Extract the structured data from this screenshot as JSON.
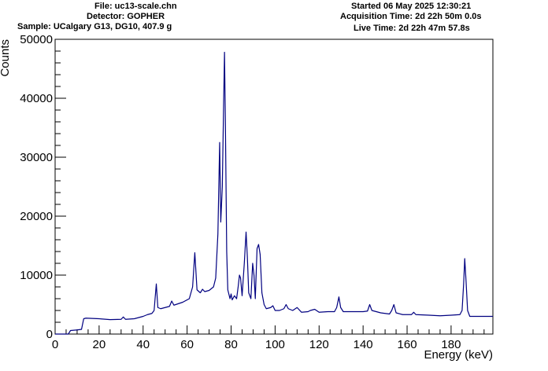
{
  "header": {
    "file": "File: uc13-scale.chn",
    "detector": "Detector: GOPHER",
    "sample": "Sample: UCalgary G13, DG10, 407.9 g",
    "started": "Started 06 May 2025 12:30:21",
    "acquisition": "Acquisition Time: 2d 22h 50m 0.0s",
    "live": "Live Time: 2d 22h 47m 57.8s"
  },
  "chart_data": {
    "type": "line",
    "title": "",
    "xlabel": "Energy (keV)",
    "ylabel": "Counts",
    "xlim": [
      0,
      199
    ],
    "ylim": [
      0,
      50000
    ],
    "x_ticks": [
      0,
      20,
      40,
      60,
      80,
      100,
      120,
      140,
      160,
      180
    ],
    "y_ticks": [
      0,
      10000,
      20000,
      30000,
      40000,
      50000
    ],
    "grid": false,
    "legend": "none",
    "color": "#000080",
    "points": [
      [
        0,
        0
      ],
      [
        6,
        0
      ],
      [
        7,
        600
      ],
      [
        10,
        700
      ],
      [
        12,
        800
      ],
      [
        13,
        2600
      ],
      [
        14,
        2700
      ],
      [
        20,
        2600
      ],
      [
        25,
        2450
      ],
      [
        30,
        2500
      ],
      [
        31,
        2900
      ],
      [
        32,
        2500
      ],
      [
        36,
        2600
      ],
      [
        38,
        2800
      ],
      [
        40,
        3000
      ],
      [
        42,
        3300
      ],
      [
        44,
        3500
      ],
      [
        45,
        4000
      ],
      [
        46,
        8500
      ],
      [
        46.7,
        4500
      ],
      [
        48,
        4300
      ],
      [
        50,
        4500
      ],
      [
        52,
        4700
      ],
      [
        53,
        5600
      ],
      [
        54,
        4900
      ],
      [
        58,
        5400
      ],
      [
        61,
        6000
      ],
      [
        62.5,
        8000
      ],
      [
        63.5,
        13800
      ],
      [
        64.5,
        7500
      ],
      [
        66,
        7000
      ],
      [
        67,
        7600
      ],
      [
        68,
        7200
      ],
      [
        70,
        7400
      ],
      [
        72,
        8000
      ],
      [
        73,
        9500
      ],
      [
        74,
        17000
      ],
      [
        74.8,
        32500
      ],
      [
        75.3,
        19000
      ],
      [
        76,
        25000
      ],
      [
        76.6,
        39000
      ],
      [
        77,
        47800
      ],
      [
        77.4,
        36000
      ],
      [
        78,
        14000
      ],
      [
        78.5,
        7500
      ],
      [
        79.5,
        6000
      ],
      [
        80,
        6800
      ],
      [
        80.5,
        5800
      ],
      [
        81.5,
        6500
      ],
      [
        82.5,
        6000
      ],
      [
        83.2,
        8000
      ],
      [
        83.8,
        10000
      ],
      [
        84.3,
        9500
      ],
      [
        85,
        6500
      ],
      [
        86,
        12000
      ],
      [
        86.8,
        17300
      ],
      [
        87.4,
        13000
      ],
      [
        88,
        7000
      ],
      [
        89,
        6000
      ],
      [
        89.8,
        12000
      ],
      [
        90.4,
        10000
      ],
      [
        91,
        6000
      ],
      [
        91.8,
        14500
      ],
      [
        92.5,
        15200
      ],
      [
        93.2,
        13500
      ],
      [
        94,
        7000
      ],
      [
        95,
        5000
      ],
      [
        96,
        4300
      ],
      [
        98,
        4500
      ],
      [
        99,
        4800
      ],
      [
        100,
        4000
      ],
      [
        102,
        4000
      ],
      [
        104,
        4300
      ],
      [
        105,
        5000
      ],
      [
        106,
        4300
      ],
      [
        108,
        4000
      ],
      [
        110,
        4500
      ],
      [
        112,
        3700
      ],
      [
        115,
        3800
      ],
      [
        116,
        4000
      ],
      [
        118,
        4200
      ],
      [
        120,
        3700
      ],
      [
        124,
        3800
      ],
      [
        127,
        3800
      ],
      [
        128,
        4500
      ],
      [
        129,
        6300
      ],
      [
        129.8,
        4500
      ],
      [
        131,
        3800
      ],
      [
        135,
        3800
      ],
      [
        140,
        3800
      ],
      [
        142,
        3900
      ],
      [
        143,
        5000
      ],
      [
        144,
        4000
      ],
      [
        148,
        3600
      ],
      [
        152,
        3400
      ],
      [
        153,
        4000
      ],
      [
        154,
        5000
      ],
      [
        155,
        3600
      ],
      [
        158,
        3300
      ],
      [
        162,
        3300
      ],
      [
        163,
        3700
      ],
      [
        164,
        3300
      ],
      [
        170,
        3200
      ],
      [
        175,
        3100
      ],
      [
        180,
        3200
      ],
      [
        184,
        3300
      ],
      [
        185,
        4000
      ],
      [
        185.7,
        8500
      ],
      [
        186.2,
        12800
      ],
      [
        186.8,
        9000
      ],
      [
        187.5,
        4000
      ],
      [
        188.5,
        3000
      ],
      [
        192,
        3000
      ],
      [
        196,
        3000
      ],
      [
        199,
        3000
      ]
    ]
  }
}
